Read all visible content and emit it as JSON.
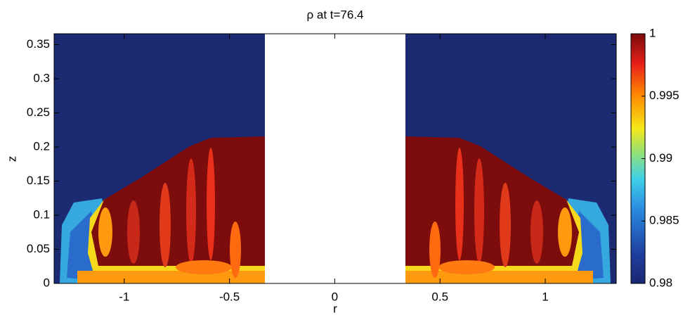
{
  "chart_data": {
    "type": "heatmap",
    "title": "ρ at t=76.4",
    "x_label": "r",
    "y_label": "z",
    "xlim": [
      -1.333,
      1.337
    ],
    "ylim": [
      0,
      0.366
    ],
    "xticks": [
      -1,
      -0.5,
      0,
      0.5,
      1
    ],
    "yticks": [
      0,
      0.05,
      0.1,
      0.15,
      0.2,
      0.25,
      0.3,
      0.35
    ],
    "colorbar": {
      "lim": [
        0.98,
        1
      ],
      "ticks": [
        0.98,
        0.985,
        0.99,
        0.995,
        1
      ],
      "colormap": "jet"
    }
  }
}
